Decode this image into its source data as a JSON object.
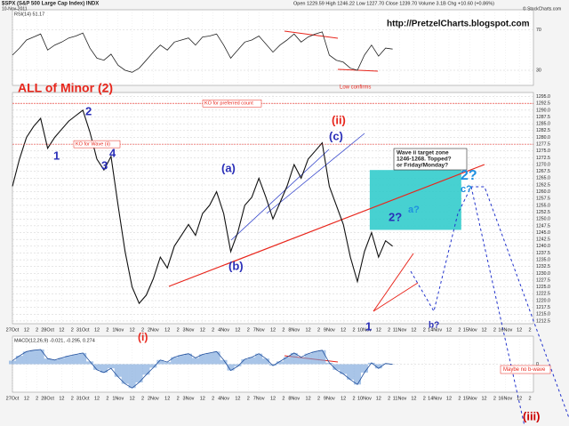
{
  "header": {
    "symbol": "$SPX (S&P 500 Large Cap Index) INDX",
    "date": "10-Nov-2011",
    "quote": "Open 1229.59  High 1246.22  Low 1227.70  Close 1239.70  Volume 3.1B  Chg +10.60 (+0.86%)",
    "source": "© StockCharts.com"
  },
  "chart_data": [
    {
      "type": "line",
      "title": "RSI(14) 51.17",
      "color": "#222222",
      "ylim": [
        15,
        90
      ],
      "yticks": [
        70,
        30
      ],
      "annotations": [
        "http://PretzelCharts.blogspot.com",
        "Low confirms"
      ],
      "values": [
        45,
        52,
        60,
        63,
        66,
        50,
        55,
        58,
        62,
        64,
        67,
        52,
        42,
        40,
        46,
        35,
        30,
        28,
        32,
        40,
        48,
        55,
        50,
        58,
        60,
        62,
        55,
        63,
        64,
        66,
        55,
        42,
        50,
        58,
        60,
        64,
        56,
        48,
        55,
        60,
        66,
        58,
        63,
        66,
        68,
        45,
        40,
        38,
        32,
        30,
        45,
        55,
        44,
        52,
        51
      ]
    },
    {
      "type": "line",
      "color": "#111111",
      "grid": true,
      "xlim": [
        0,
        14.8
      ],
      "ylim": [
        1211.5,
        1296.5
      ],
      "x": [
        0,
        0.2,
        0.4,
        0.6,
        0.8,
        1,
        1.2,
        1.4,
        1.6,
        1.8,
        2,
        2.2,
        2.4,
        2.6,
        2.8,
        3,
        3.2,
        3.4,
        3.6,
        3.8,
        4,
        4.2,
        4.4,
        4.6,
        4.8,
        5,
        5.2,
        5.4,
        5.6,
        5.8,
        6,
        6.2,
        6.4,
        6.6,
        6.8,
        7,
        7.2,
        7.4,
        7.6,
        7.8,
        8,
        8.2,
        8.4,
        8.6,
        8.8,
        9,
        9.2,
        9.4,
        9.6,
        9.8,
        10,
        10.2,
        10.4,
        10.6,
        10.8
      ],
      "values": [
        1262,
        1272,
        1280,
        1284,
        1287,
        1276,
        1280,
        1283,
        1286,
        1288,
        1290,
        1282,
        1272,
        1268,
        1273,
        1255,
        1238,
        1225,
        1219,
        1222,
        1228,
        1236,
        1232,
        1240,
        1244,
        1248,
        1244,
        1252,
        1255,
        1260,
        1252,
        1238,
        1245,
        1255,
        1258,
        1265,
        1258,
        1250,
        1256,
        1262,
        1270,
        1265,
        1272,
        1275,
        1278,
        1262,
        1255,
        1248,
        1236,
        1227,
        1238,
        1245,
        1236,
        1242,
        1240
      ],
      "yticks": [
        {
          "value": 1295,
          "label": "1295.0"
        },
        {
          "value": 1292.5,
          "label": "1292.5"
        },
        {
          "value": 1290,
          "label": "1290.0"
        },
        {
          "value": 1287.5,
          "label": "1287.5"
        },
        {
          "value": 1285,
          "label": "1285.0"
        },
        {
          "value": 1282.5,
          "label": "1282.5"
        },
        {
          "value": 1280,
          "label": "1280.0"
        },
        {
          "value": 1277.5,
          "label": "1277.5"
        },
        {
          "value": 1275,
          "label": "1275.0"
        },
        {
          "value": 1272.5,
          "label": "1272.5"
        },
        {
          "value": 1270,
          "label": "1270.0"
        },
        {
          "value": 1267.5,
          "label": "1267.5"
        },
        {
          "value": 1265,
          "label": "1265.0"
        },
        {
          "value": 1262.5,
          "label": "1262.5"
        },
        {
          "value": 1260,
          "label": "1260.0"
        },
        {
          "value": 1257.5,
          "label": "1257.5"
        },
        {
          "value": 1255,
          "label": "1255.0"
        },
        {
          "value": 1252.5,
          "label": "1252.5"
        },
        {
          "value": 1250,
          "label": "1250.0"
        },
        {
          "value": 1247.5,
          "label": "1247.5"
        },
        {
          "value": 1245,
          "label": "1245.0"
        },
        {
          "value": 1242.5,
          "label": "1242.5"
        },
        {
          "value": 1240,
          "label": "1240.0"
        },
        {
          "value": 1237.5,
          "label": "1237.5"
        },
        {
          "value": 1235,
          "label": "1235.0"
        },
        {
          "value": 1232.5,
          "label": "1232.5"
        },
        {
          "value": 1230,
          "label": "1230.0"
        },
        {
          "value": 1227.5,
          "label": "1227.5"
        },
        {
          "value": 1225,
          "label": "1225.0"
        },
        {
          "value": 1222.5,
          "label": "1222.5"
        },
        {
          "value": 1220,
          "label": "1220.0"
        },
        {
          "value": 1217.5,
          "label": "1217.5"
        },
        {
          "value": 1215,
          "label": "1215.0"
        },
        {
          "value": 1212.5,
          "label": "1212.5"
        }
      ],
      "xticks": [
        {
          "value": 0,
          "label": "27Oct"
        },
        {
          "value": 0.4,
          "label": "12"
        },
        {
          "value": 0.7,
          "label": "2"
        },
        {
          "value": 1,
          "label": "28Oct"
        },
        {
          "value": 1.4,
          "label": "12"
        },
        {
          "value": 1.7,
          "label": "2"
        },
        {
          "value": 2,
          "label": "31Oct"
        },
        {
          "value": 2.4,
          "label": "12"
        },
        {
          "value": 2.7,
          "label": "2"
        },
        {
          "value": 3,
          "label": "1Nov"
        },
        {
          "value": 3.4,
          "label": "12"
        },
        {
          "value": 3.7,
          "label": "2"
        },
        {
          "value": 4,
          "label": "2Nov"
        },
        {
          "value": 4.4,
          "label": "12"
        },
        {
          "value": 4.7,
          "label": "2"
        },
        {
          "value": 5,
          "label": "3Nov"
        },
        {
          "value": 5.4,
          "label": "12"
        },
        {
          "value": 5.7,
          "label": "2"
        },
        {
          "value": 6,
          "label": "4Nov"
        },
        {
          "value": 6.4,
          "label": "12"
        },
        {
          "value": 6.7,
          "label": "2"
        },
        {
          "value": 7,
          "label": "7Nov"
        },
        {
          "value": 7.4,
          "label": "12"
        },
        {
          "value": 7.7,
          "label": "2"
        },
        {
          "value": 8,
          "label": "8Nov"
        },
        {
          "value": 8.4,
          "label": "12"
        },
        {
          "value": 8.7,
          "label": "2"
        },
        {
          "value": 9,
          "label": "9Nov"
        },
        {
          "value": 9.4,
          "label": "12"
        },
        {
          "value": 9.7,
          "label": "2"
        },
        {
          "value": 10,
          "label": "10Nov"
        },
        {
          "value": 10.4,
          "label": "12"
        },
        {
          "value": 10.7,
          "label": "2"
        },
        {
          "value": 11,
          "label": "11Nov"
        },
        {
          "value": 11.4,
          "label": "12"
        },
        {
          "value": 11.7,
          "label": "2"
        },
        {
          "value": 12,
          "label": "14Nov"
        },
        {
          "value": 12.4,
          "label": "12"
        },
        {
          "value": 12.7,
          "label": "2"
        },
        {
          "value": 13,
          "label": "15Nov"
        },
        {
          "value": 13.4,
          "label": "12"
        },
        {
          "value": 13.7,
          "label": "2"
        },
        {
          "value": 14,
          "label": "16Nov"
        },
        {
          "value": 14.4,
          "label": "12"
        },
        {
          "value": 14.7,
          "label": "2"
        }
      ],
      "levels": [
        {
          "label": "KO for preferred count",
          "value": 1292.5
        },
        {
          "label": "KO for Wave (ii)",
          "value": 1277.5
        }
      ],
      "zone": {
        "label": [
          "Wave ii target zone",
          "1246-1268.  Topped?",
          "or Friday/Monday?"
        ],
        "range": [
          1246,
          1268
        ],
        "xrange": [
          10.15,
          12.75
        ],
        "color": "#33cccc"
      },
      "annotations": [
        "ALL of Minor (2)",
        "1",
        "2",
        "3",
        "4",
        "(i)",
        "(a)",
        "(b)",
        "(ii)",
        "(c)",
        "1",
        "2?",
        "a?",
        "b?",
        "c?",
        "2?"
      ]
    },
    {
      "type": "line",
      "title": "MACD(12,26,9) -0.021, -0.295, 0.274",
      "color": "#1f4e9c",
      "ylim": [
        -4,
        4
      ],
      "yticks": [
        0
      ],
      "annotations": [
        "Maybe no b-wave",
        "(iii)"
      ],
      "values": [
        0.5,
        1.2,
        1.8,
        2.0,
        2.1,
        0.8,
        0.6,
        0.9,
        1.2,
        1.4,
        1.6,
        0.4,
        -0.8,
        -1.2,
        -0.6,
        -1.8,
        -2.8,
        -3.4,
        -2.6,
        -1.5,
        -0.5,
        0.6,
        0.3,
        1.0,
        1.3,
        1.5,
        0.9,
        1.4,
        1.6,
        1.8,
        0.6,
        -0.9,
        -0.3,
        0.7,
        1.0,
        1.5,
        0.8,
        -0.2,
        0.4,
        1.0,
        1.6,
        1.0,
        1.5,
        1.8,
        2.0,
        0.2,
        -0.8,
        -1.4,
        -2.2,
        -2.9,
        -1.2,
        0.2,
        -0.6,
        0.1,
        -0.02
      ]
    }
  ]
}
